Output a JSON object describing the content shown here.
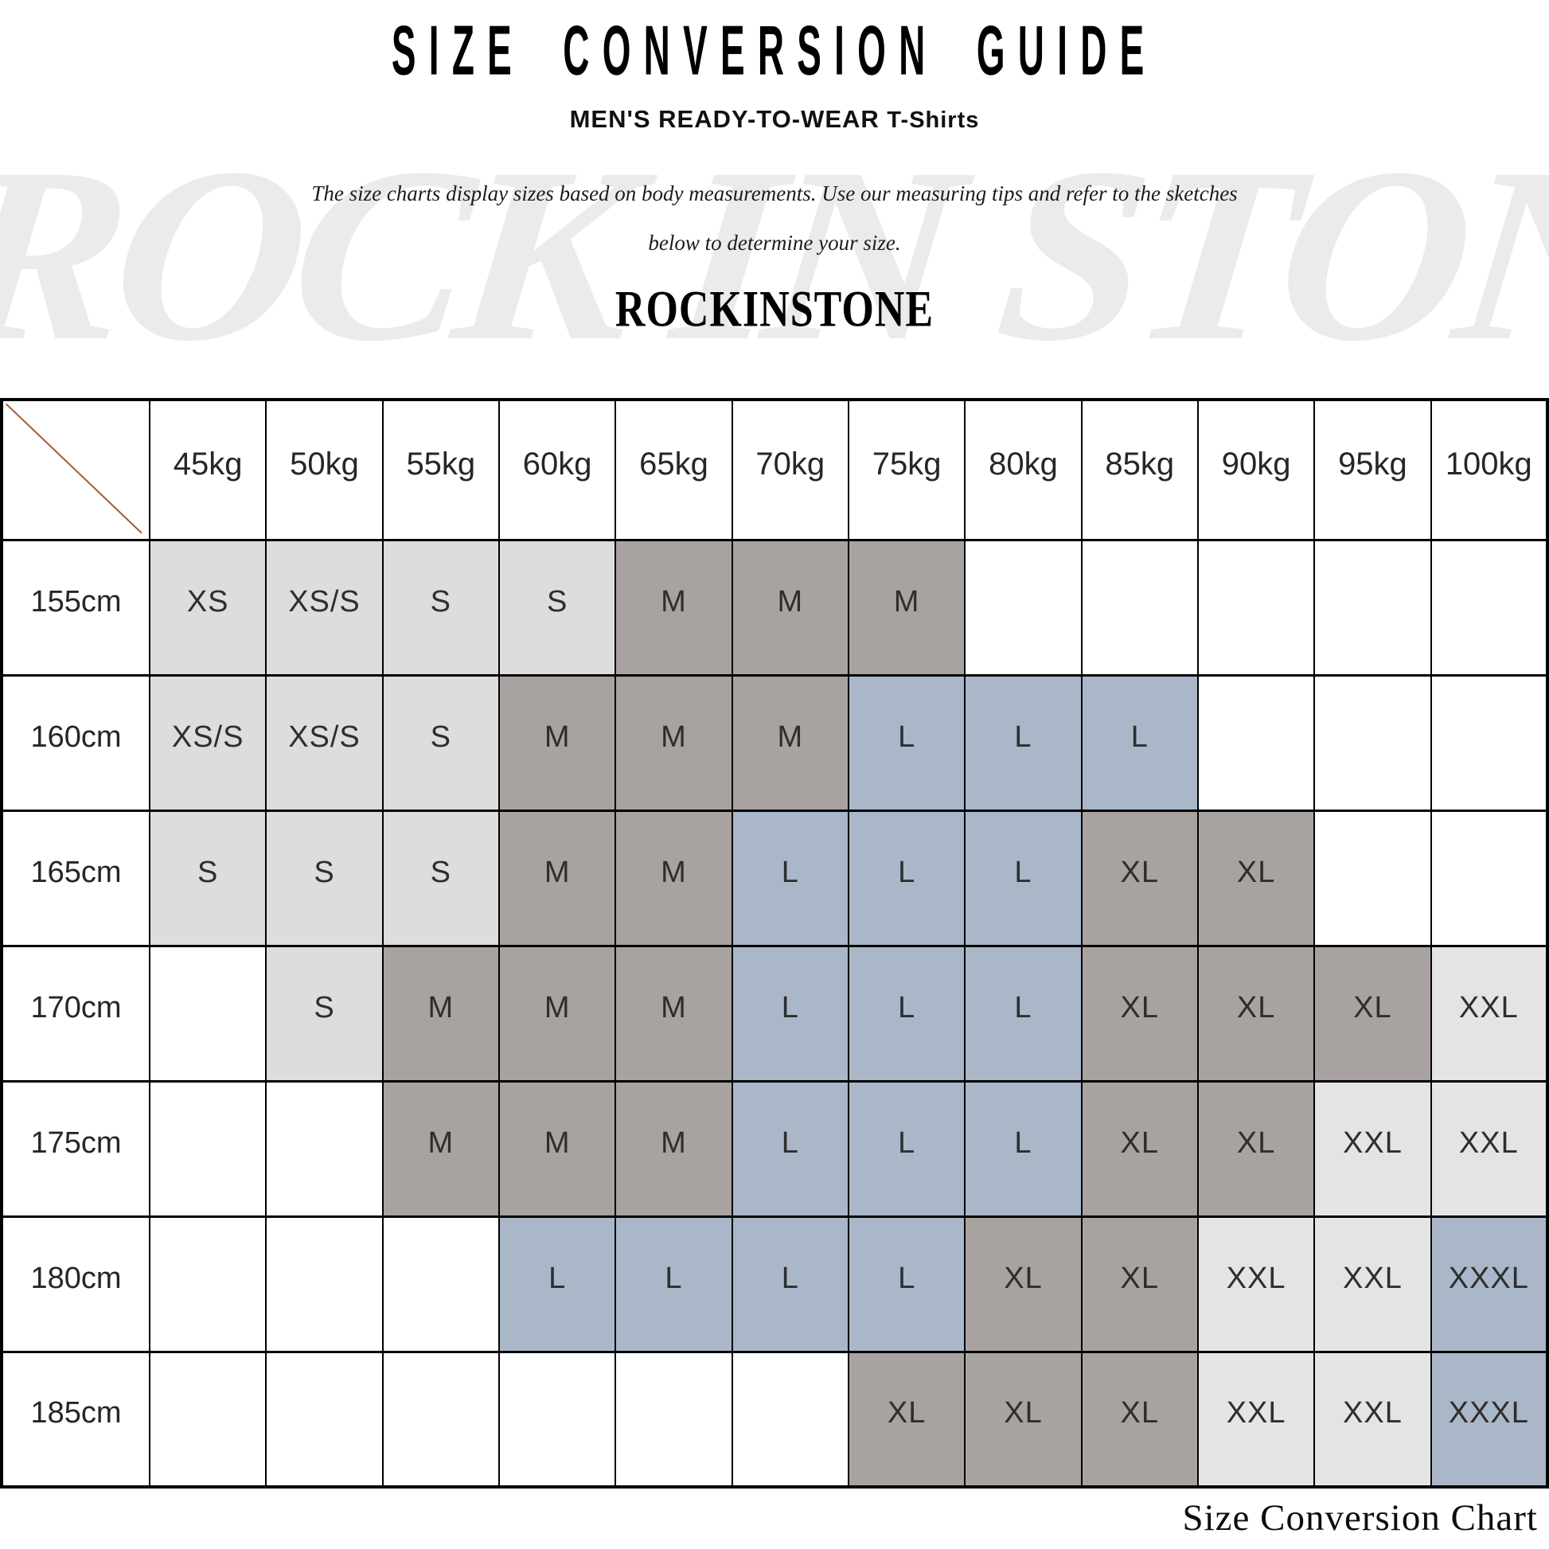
{
  "page": {
    "title": "SIZE CONVERSION GUIDE",
    "subtitle_main": "MEN'S READY-TO-WEAR",
    "subtitle_sub": "T-Shirts",
    "description_line1": "The size charts display sizes based on body measurements.  Use our measuring tips and refer to the sketches",
    "description_line2": "below to determine your size.",
    "brand": "ROCKINSTONE",
    "watermark": "ROCK IN STONE",
    "footer_caption": "Size Conversion Chart"
  },
  "colors": {
    "cell_light": "#dddddd",
    "cell_xlight": "#e4e4e4",
    "cell_dark": "#a8a3a0",
    "cell_blue": "#aab7c8",
    "diagonal_line": "#9c5c34",
    "border": "#000000"
  },
  "chart_data": {
    "type": "table",
    "title": "SIZE CONVERSION GUIDE",
    "subtitle": "MEN'S READY-TO-WEAR T-Shirts",
    "columns": [
      "45kg",
      "50kg",
      "55kg",
      "60kg",
      "65kg",
      "70kg",
      "75kg",
      "80kg",
      "85kg",
      "90kg",
      "95kg",
      "100kg"
    ],
    "rows": [
      "155cm",
      "160cm",
      "165cm",
      "170cm",
      "175cm",
      "180cm",
      "185cm"
    ],
    "values": [
      [
        "XS",
        "XS/S",
        "S",
        "S",
        "M",
        "M",
        "M",
        "",
        "",
        "",
        "",
        ""
      ],
      [
        "XS/S",
        "XS/S",
        "S",
        "M",
        "M",
        "M",
        "L",
        "L",
        "L",
        "",
        "",
        ""
      ],
      [
        "S",
        "S",
        "S",
        "M",
        "M",
        "L",
        "L",
        "L",
        "XL",
        "XL",
        "",
        ""
      ],
      [
        "",
        "S",
        "M",
        "M",
        "M",
        "L",
        "L",
        "L",
        "XL",
        "XL",
        "XL",
        "XXL"
      ],
      [
        "",
        "",
        "M",
        "M",
        "M",
        "L",
        "L",
        "L",
        "XL",
        "XL",
        "XXL",
        "XXL"
      ],
      [
        "",
        "",
        "",
        "L",
        "L",
        "L",
        "L",
        "XL",
        "XL",
        "XXL",
        "XXL",
        "XXXL"
      ],
      [
        "",
        "",
        "",
        "",
        "",
        "",
        "XL",
        "XL",
        "XL",
        "XXL",
        "XXL",
        "XXXL"
      ]
    ],
    "cell_styles": [
      [
        "light",
        "light",
        "light",
        "light",
        "dark",
        "dark",
        "dark",
        "",
        "",
        "",
        "",
        ""
      ],
      [
        "light",
        "light",
        "light",
        "dark",
        "dark",
        "dark",
        "blue",
        "blue",
        "blue",
        "",
        "",
        ""
      ],
      [
        "light",
        "light",
        "light",
        "dark",
        "dark",
        "blue",
        "blue",
        "blue",
        "dark",
        "dark",
        "",
        ""
      ],
      [
        "",
        "light",
        "dark",
        "dark",
        "dark",
        "blue",
        "blue",
        "blue",
        "dark",
        "dark",
        "dark",
        "xlight"
      ],
      [
        "",
        "",
        "dark",
        "dark",
        "dark",
        "blue",
        "blue",
        "blue",
        "dark",
        "dark",
        "xlight",
        "xlight"
      ],
      [
        "",
        "",
        "",
        "blue",
        "blue",
        "blue",
        "blue",
        "dark",
        "dark",
        "xlight",
        "xlight",
        "blue"
      ],
      [
        "",
        "",
        "",
        "",
        "",
        "",
        "dark",
        "dark",
        "dark",
        "xlight",
        "xlight",
        "blue"
      ]
    ]
  }
}
